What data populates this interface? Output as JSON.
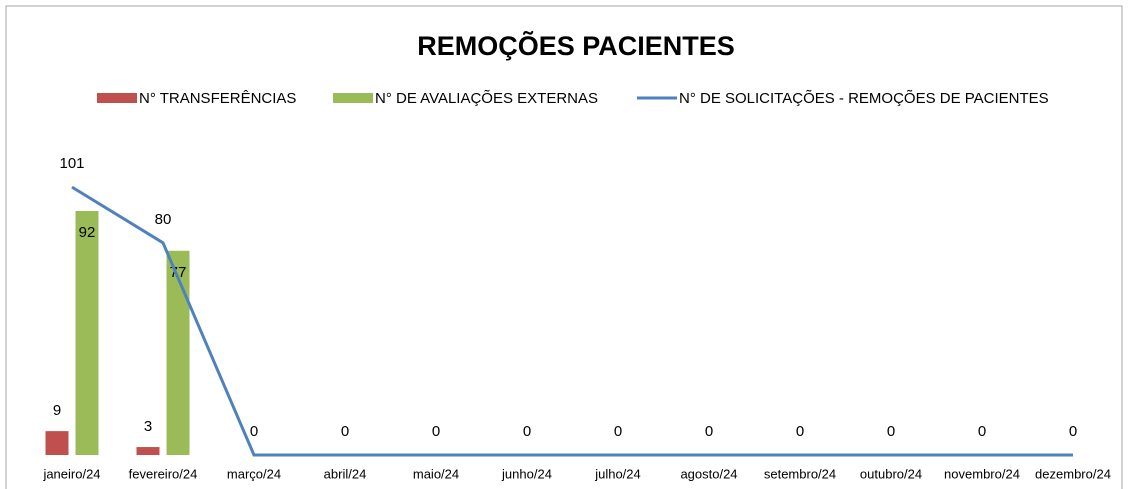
{
  "chart_data": {
    "type": "bar_line",
    "title": "REMOÇÕES PACIENTES",
    "categories": [
      "janeiro/24",
      "fevereiro/24",
      "março/24",
      "abril/24",
      "maio/24",
      "junho/24",
      "julho/24",
      "agosto/24",
      "setembro/24",
      "outubro/24",
      "novembro/24",
      "dezembro/24"
    ],
    "series": [
      {
        "name": "N° TRANSFERÊNCIAS",
        "type": "bar",
        "color": "#c0504d",
        "values": [
          9,
          3,
          null,
          null,
          null,
          null,
          null,
          null,
          null,
          null,
          null,
          null
        ]
      },
      {
        "name": "N° DE AVALIAÇÕES EXTERNAS",
        "type": "bar",
        "color": "#9bbb59",
        "values": [
          92,
          77,
          null,
          null,
          null,
          null,
          null,
          null,
          null,
          null,
          null,
          null
        ]
      },
      {
        "name": "N° DE SOLICITAÇÕES - REMOÇÕES DE PACIENTES",
        "type": "line",
        "color": "#4f81bd",
        "values": [
          101,
          80,
          0,
          0,
          0,
          0,
          0,
          0,
          0,
          0,
          0,
          0
        ]
      }
    ],
    "ylim": [
      0,
      115
    ]
  }
}
